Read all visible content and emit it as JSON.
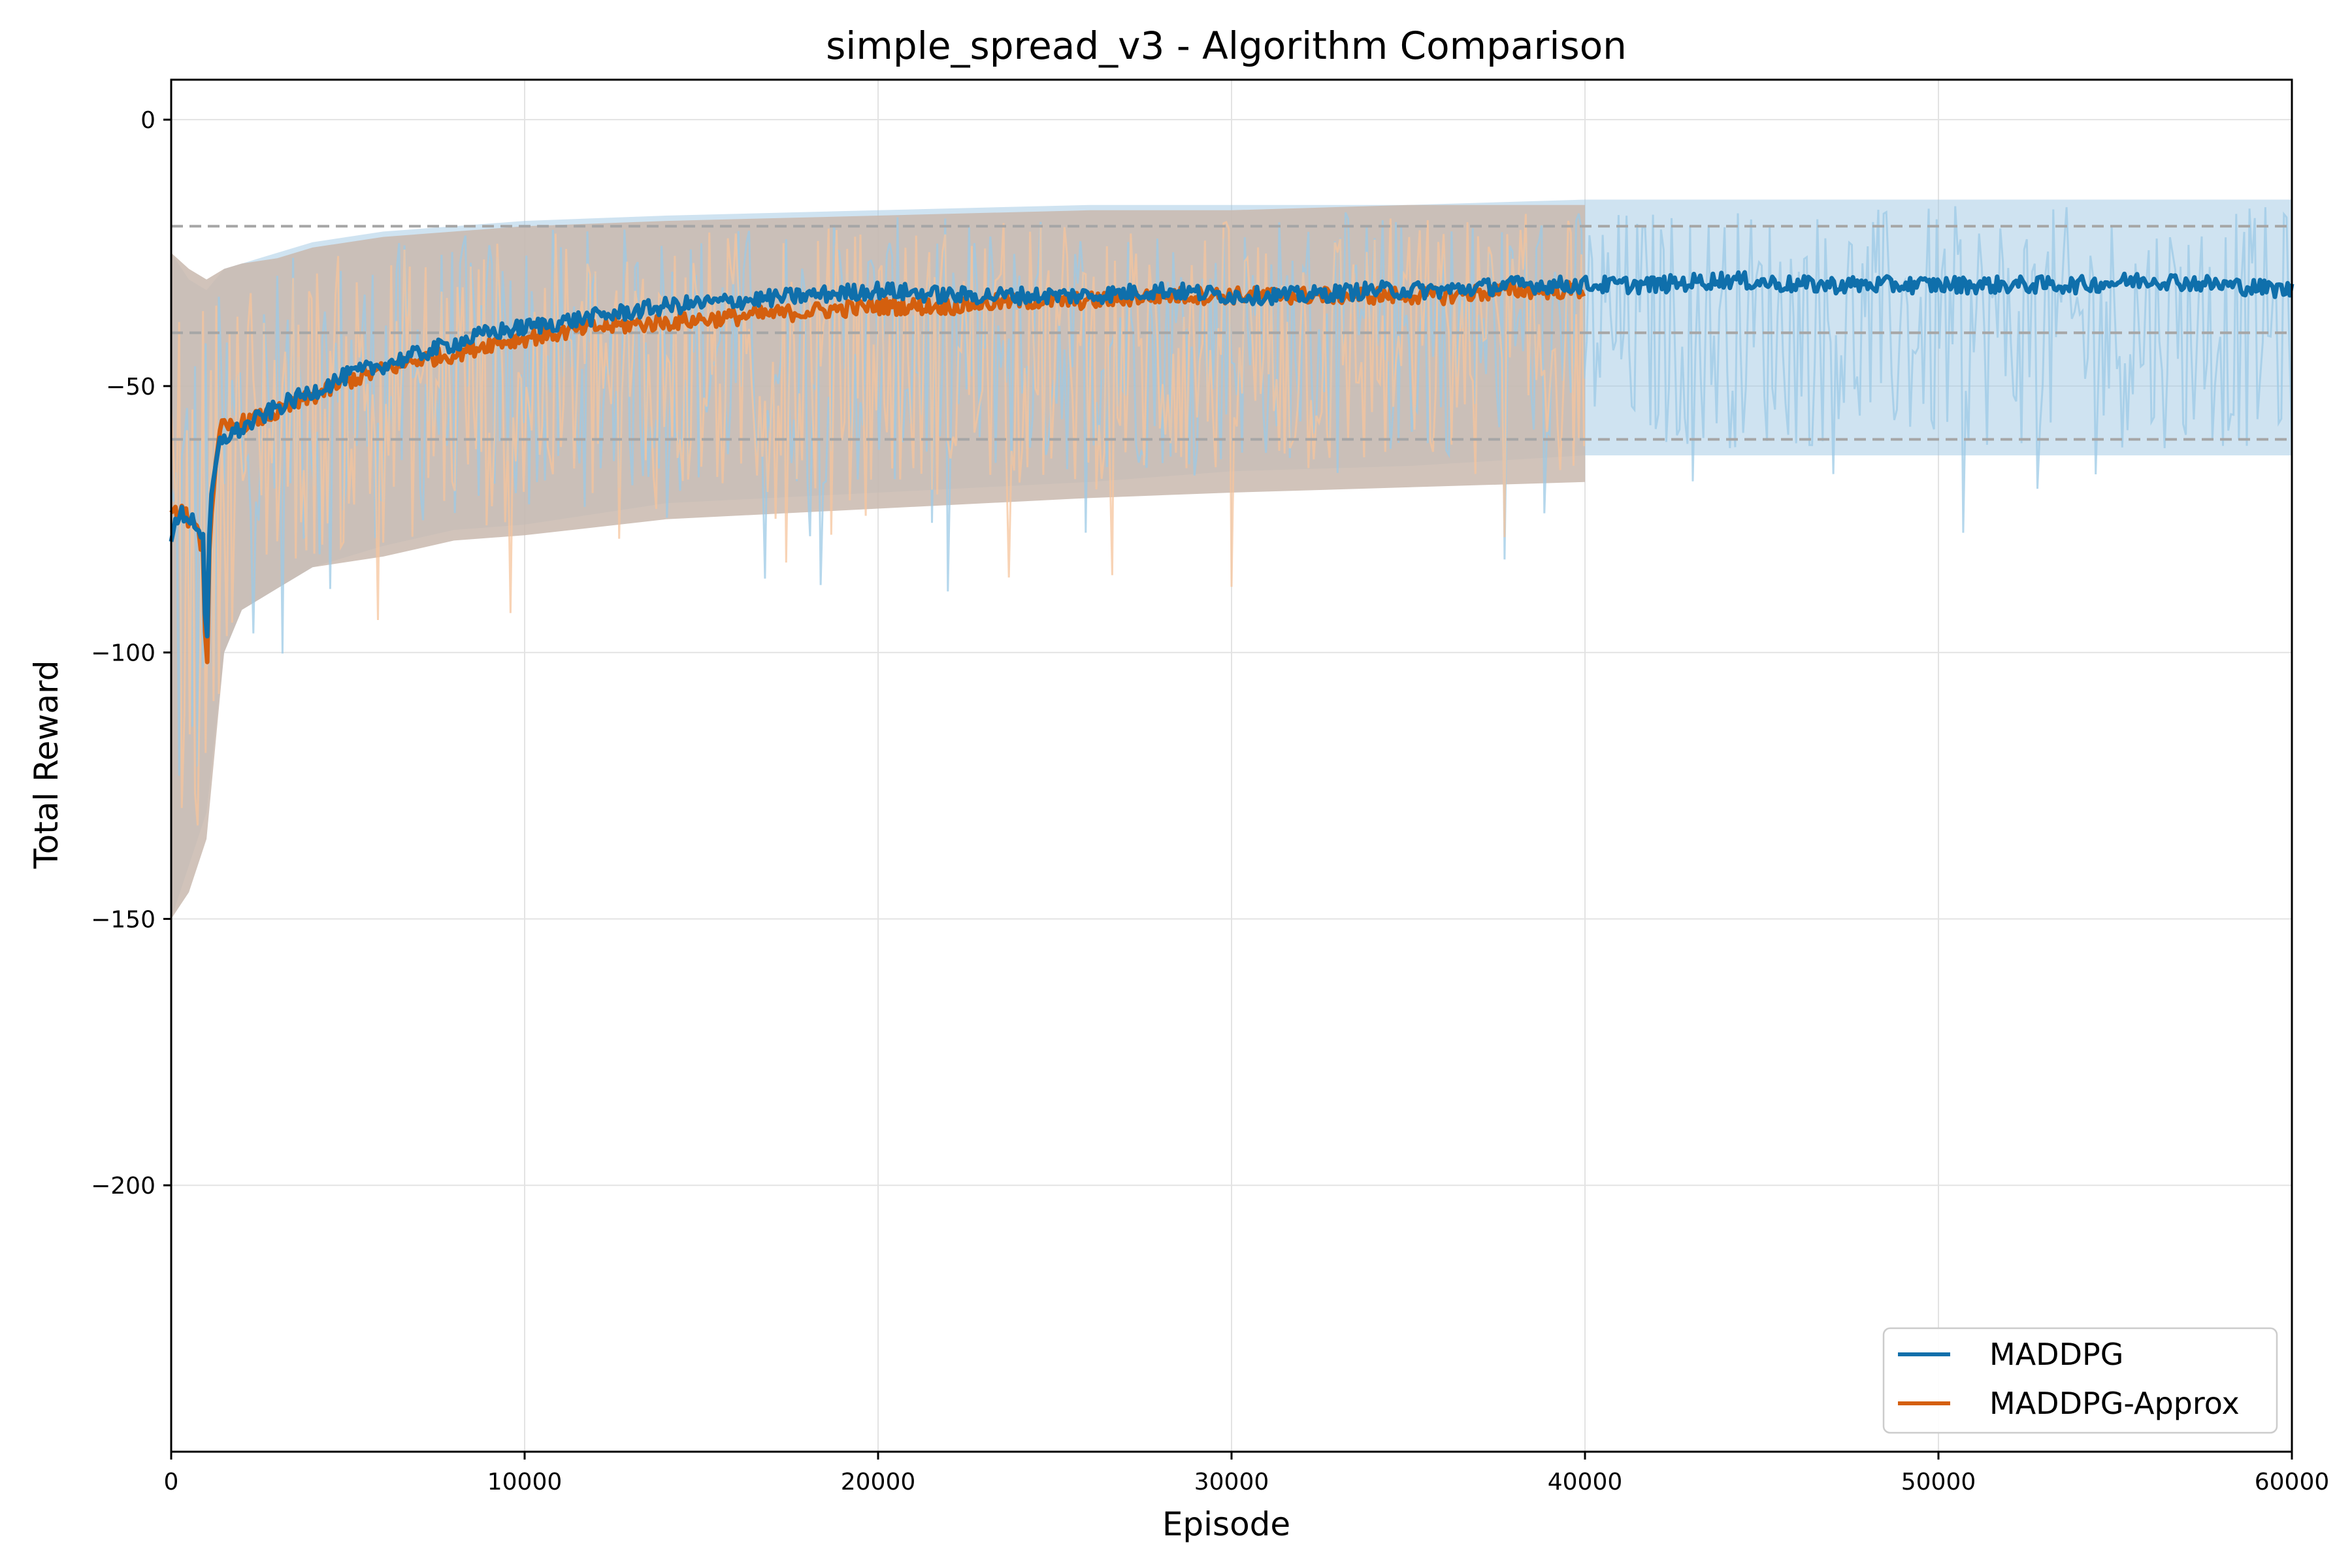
{
  "chart_data": {
    "type": "line",
    "title": "simple_spread_v3 - Algorithm Comparison",
    "xlabel": "Episode",
    "ylabel": "Total Reward",
    "xlim": [
      0,
      60000
    ],
    "ylim": [
      -250,
      7.5
    ],
    "x_ticks": [
      0,
      10000,
      20000,
      30000,
      40000,
      50000,
      60000
    ],
    "x_tick_labels": [
      "0",
      "10000",
      "20000",
      "30000",
      "40000",
      "50000",
      "60000"
    ],
    "y_ticks": [
      0,
      -50,
      -100,
      -150,
      -200
    ],
    "y_tick_labels": [
      "0",
      "−50",
      "−100",
      "−150",
      "−200"
    ],
    "grid": true,
    "legend_position": "lower-right",
    "reference_lines": [
      -20,
      -40,
      -60
    ],
    "reference_line_color": "#a6a6a6",
    "series": [
      {
        "name": "MADDPG",
        "color": "#0f6fab",
        "band_color": "#9fc8e3",
        "raw_color": "#9ccae6",
        "mean": {
          "x": [
            0,
            300,
            600,
            900,
            1000,
            1100,
            1400,
            2000,
            3000,
            4000,
            5000,
            6000,
            7000,
            8000,
            9000,
            10000,
            12000,
            14000,
            16000,
            18000,
            20000,
            22000,
            24000,
            26000,
            28000,
            30000,
            32000,
            34000,
            36000,
            38000,
            40000,
            42000,
            44000,
            46000,
            48000,
            50000,
            52000,
            54000,
            56000,
            58000,
            60000
          ],
          "y": [
            -78,
            -74,
            -75,
            -78,
            -105,
            -72,
            -60,
            -58,
            -54,
            -51,
            -48,
            -46,
            -44,
            -42,
            -40,
            -39,
            -37,
            -35,
            -34,
            -33,
            -32,
            -33,
            -33,
            -33,
            -32,
            -33,
            -33,
            -32,
            -32,
            -31,
            -31,
            -31,
            -30,
            -31,
            -31,
            -31,
            -31,
            -31,
            -30,
            -31,
            -32
          ]
        },
        "band": {
          "x": [
            0,
            500,
            1000,
            1500,
            2000,
            3000,
            4000,
            6000,
            8000,
            10000,
            14000,
            20000,
            26000,
            30000,
            35000,
            40000,
            45000,
            50000,
            55000,
            60000
          ],
          "upper": [
            -25,
            -30,
            -32,
            -28,
            -27,
            -25,
            -23,
            -21,
            -20,
            -19,
            -18,
            -17,
            -16,
            -16,
            -16,
            -15,
            -15,
            -15,
            -15,
            -15
          ],
          "lower": [
            -150,
            -140,
            -130,
            -100,
            -92,
            -88,
            -84,
            -80,
            -77,
            -76,
            -72,
            -70,
            -68,
            -66,
            -65,
            -63,
            -63,
            -63,
            -63,
            -63
          ]
        }
      },
      {
        "name": "MADDPG-Approx",
        "color": "#d45f0e",
        "band_color": "#c9b9ae",
        "raw_color": "#f5c49c",
        "mean": {
          "x": [
            0,
            300,
            600,
            900,
            1000,
            1100,
            1400,
            2000,
            3000,
            4000,
            5000,
            6000,
            7000,
            8000,
            9000,
            10000,
            12000,
            14000,
            16000,
            18000,
            20000,
            22000,
            24000,
            26000,
            28000,
            30000,
            32000,
            34000,
            36000,
            38000,
            40000
          ],
          "y": [
            -75,
            -73,
            -76,
            -80,
            -107,
            -75,
            -58,
            -57,
            -55,
            -52,
            -49,
            -47,
            -45,
            -44,
            -42,
            -41,
            -39,
            -38,
            -37,
            -36,
            -35,
            -35,
            -34,
            -34,
            -33,
            -33,
            -33,
            -33,
            -33,
            -32,
            -32
          ]
        },
        "band": {
          "x": [
            0,
            500,
            1000,
            1500,
            2000,
            3000,
            4000,
            6000,
            8000,
            10000,
            14000,
            20000,
            26000,
            30000,
            35000,
            40000
          ],
          "upper": [
            -25,
            -28,
            -30,
            -28,
            -27,
            -26,
            -24,
            -22,
            -21,
            -20,
            -19,
            -18,
            -17,
            -17,
            -16,
            -16
          ],
          "lower": [
            -150,
            -145,
            -135,
            -100,
            -92,
            -88,
            -84,
            -82,
            -79,
            -78,
            -75,
            -73,
            -71,
            -70,
            -69,
            -68
          ]
        }
      }
    ]
  }
}
